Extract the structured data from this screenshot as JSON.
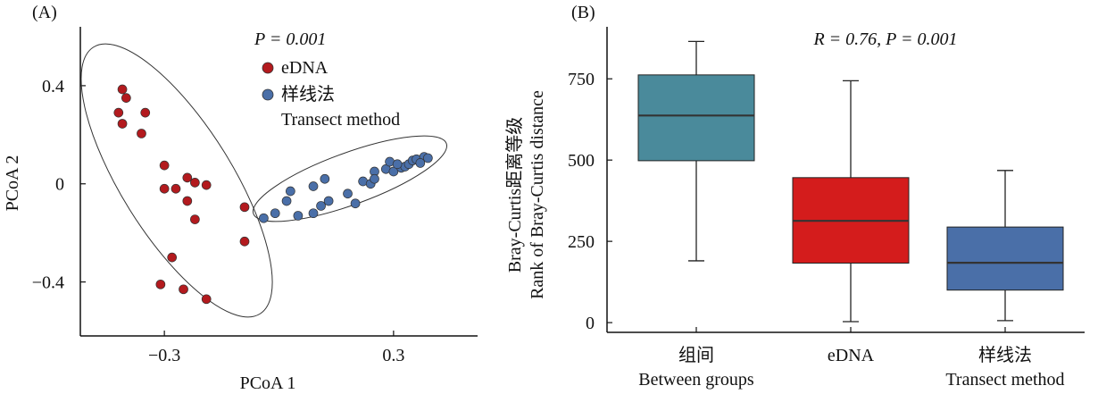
{
  "chart_data": [
    {
      "type": "scatter",
      "panel_label": "(A)",
      "annotation": "P = 0.001",
      "xlabel": "PCoA 1",
      "ylabel": "PCoA 2",
      "xlim": [
        -0.52,
        0.52
      ],
      "ylim": [
        -0.62,
        0.64
      ],
      "xticks": [
        -0.3,
        0.3
      ],
      "yticks": [
        0.4,
        0,
        -0.4
      ],
      "grid": false,
      "legend": "top-right",
      "series": [
        {
          "name": "eDNA",
          "color": "#b31a1e",
          "points": [
            [
              -0.41,
              0.385
            ],
            [
              -0.4,
              0.35
            ],
            [
              -0.42,
              0.29
            ],
            [
              -0.41,
              0.245
            ],
            [
              -0.35,
              0.29
            ],
            [
              -0.36,
              0.205
            ],
            [
              -0.3,
              0.075
            ],
            [
              -0.24,
              0.025
            ],
            [
              -0.22,
              0.005
            ],
            [
              -0.19,
              -0.005
            ],
            [
              -0.27,
              -0.02
            ],
            [
              -0.3,
              -0.02
            ],
            [
              -0.24,
              -0.07
            ],
            [
              -0.22,
              -0.145
            ],
            [
              -0.09,
              -0.095
            ],
            [
              -0.09,
              -0.235
            ],
            [
              -0.28,
              -0.3
            ],
            [
              -0.31,
              -0.41
            ],
            [
              -0.25,
              -0.43
            ],
            [
              -0.19,
              -0.47
            ]
          ]
        },
        {
          "name": "样线法",
          "name2": "Transect method",
          "color": "#4a6fa8",
          "points": [
            [
              -0.04,
              -0.14
            ],
            [
              -0.01,
              -0.12
            ],
            [
              0.03,
              -0.03
            ],
            [
              0.02,
              -0.07
            ],
            [
              0.05,
              -0.13
            ],
            [
              0.09,
              -0.12
            ],
            [
              0.11,
              -0.09
            ],
            [
              0.13,
              -0.07
            ],
            [
              0.09,
              -0.01
            ],
            [
              0.12,
              0.02
            ],
            [
              0.18,
              -0.04
            ],
            [
              0.2,
              -0.08
            ],
            [
              0.22,
              0.01
            ],
            [
              0.24,
              0.0
            ],
            [
              0.25,
              0.05
            ],
            [
              0.25,
              0.02
            ],
            [
              0.28,
              0.06
            ],
            [
              0.29,
              0.09
            ],
            [
              0.3,
              0.05
            ],
            [
              0.32,
              0.065
            ],
            [
              0.33,
              0.07
            ],
            [
              0.34,
              0.08
            ],
            [
              0.35,
              0.095
            ],
            [
              0.36,
              0.1
            ],
            [
              0.38,
              0.11
            ],
            [
              0.31,
              0.08
            ],
            [
              0.37,
              0.085
            ],
            [
              0.39,
              0.105
            ]
          ]
        }
      ]
    },
    {
      "type": "box",
      "panel_label": "(B)",
      "annotation": "R = 0.76, P = 0.001",
      "ylabel": "Bray-Curtis距离等级",
      "ylabel2": "Rank of Bray-Curtis distance",
      "ylim": [
        -30,
        910
      ],
      "yticks": [
        0,
        250,
        500,
        750
      ],
      "grid": false,
      "categories": [
        {
          "label": "组间",
          "label2": "Between groups"
        },
        {
          "label": "eDNA",
          "label2": ""
        },
        {
          "label": "样线法",
          "label2": "Transect method"
        }
      ],
      "boxes": [
        {
          "whisker_low": 190,
          "q1": 498,
          "median": 637,
          "q3": 762,
          "whisker_high": 865,
          "color": "#4a8a9b"
        },
        {
          "whisker_low": 3,
          "q1": 183,
          "median": 313,
          "q3": 446,
          "whisker_high": 744,
          "color": "#d41c1c"
        },
        {
          "whisker_low": 6,
          "q1": 100,
          "median": 184,
          "q3": 294,
          "whisker_high": 468,
          "color": "#4a6fa8"
        }
      ]
    }
  ]
}
